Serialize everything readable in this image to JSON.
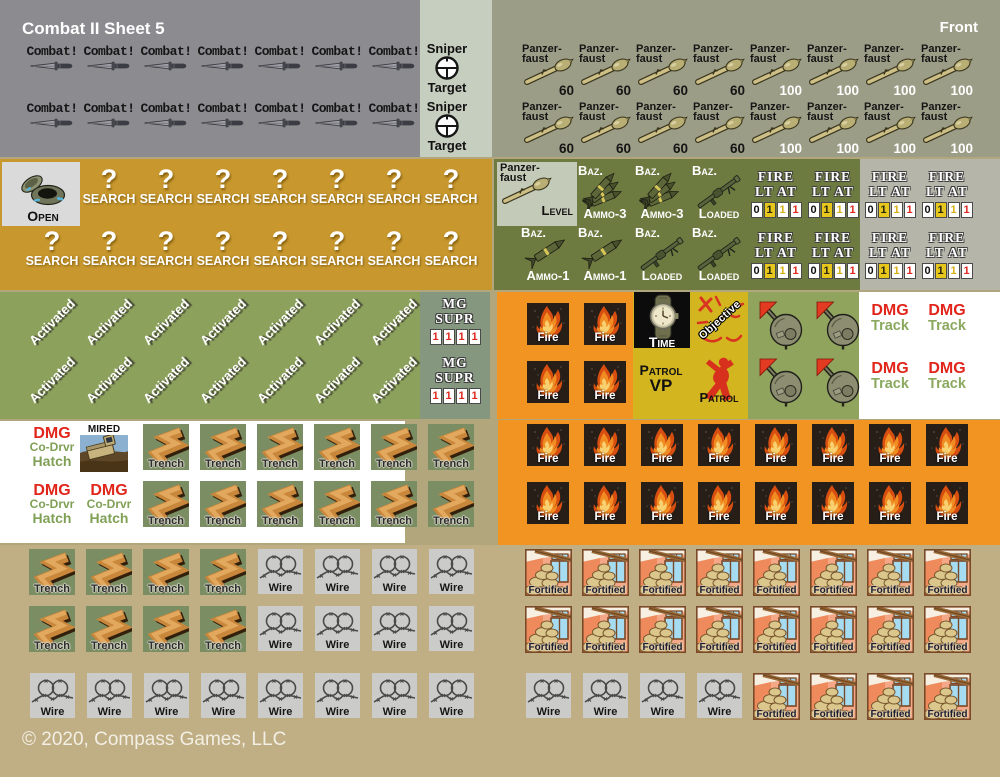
{
  "sheet": {
    "title": "Combat II Sheet 5",
    "corner_label": "Front",
    "copyright": "© 2020, Compass Games, LLC"
  },
  "colors": {
    "band_gray": "#8b8b90",
    "band_sage": "#c6cebf",
    "band_olive_gray": "#9b9d87",
    "band_gold": "#c8982f",
    "cell_light_gray": "#dadada",
    "band_olive_green": "#6d7b41",
    "band_fire_gray": "#b5b6a9",
    "band_green": "#8ca15b",
    "band_mg_green": "#85977e",
    "band_orange": "#f29422",
    "band_yellow": "#d2b51f",
    "band_white": "#ffffff",
    "tan_mid": "#b2a67c",
    "tan_light": "#c0ae84",
    "dmg_red": "#e1251b",
    "dmg_green": "#7fa055",
    "box_yellow": "#e8c71d",
    "box_red": "#e0281e"
  },
  "counters": {
    "combat": {
      "label": "Combat!",
      "icon": "dagger-icon",
      "count": 14
    },
    "sniper_target": {
      "line1": "Sniper",
      "line2": "Target",
      "icon": "scope-reticle-icon",
      "count": 2
    },
    "panzerfaust60": {
      "name1": "Panzer-",
      "name2": "faust",
      "value": "60",
      "icon": "panzerfaust-icon",
      "count": 8
    },
    "panzerfaust100": {
      "name1": "Panzer-",
      "name2": "faust",
      "value": "100",
      "icon": "panzerfaust-icon",
      "count": 8
    },
    "open": {
      "label": "Open",
      "icon": "open-hatch-icon",
      "count": 1
    },
    "search": {
      "mark": "?",
      "label": "SEARCH",
      "count": 15
    },
    "panzerfaust_level": {
      "name1": "Panzer-",
      "name2": "faust",
      "label": "Level",
      "icon": "panzerfaust-icon",
      "count": 1
    },
    "baz_ammo3": {
      "top": "Baz.",
      "bottom": "Ammo-3",
      "icon": "rockets-3-icon",
      "count": 2
    },
    "baz_ammo1": {
      "top": "Baz.",
      "bottom": "Ammo-1",
      "icon": "rocket-icon",
      "count": 2
    },
    "baz_loaded": {
      "top": "Baz.",
      "bottom": "Loaded",
      "icon": "bazooka-icon",
      "count": 3
    },
    "fire_lt_at": {
      "line1": "FIRE",
      "line2": "LT AT",
      "boxes": [
        "0",
        "1",
        "1",
        "1"
      ],
      "count": 8
    },
    "activated": {
      "label": "Activated",
      "count": 14
    },
    "mg_supr": {
      "line1": "MG",
      "line2": "SUPR",
      "boxes": [
        "1",
        "1",
        "1",
        "1"
      ],
      "count": 2
    },
    "fire": {
      "label": "Fire",
      "icon": "flame-icon",
      "count": 20
    },
    "time": {
      "label": "Time",
      "icon": "watch-icon",
      "count": 1
    },
    "objective": {
      "label": "Objective",
      "icon": "map-scribbles-icon",
      "count": 1
    },
    "patrol_vp": {
      "line1": "Patrol",
      "line2": "VP",
      "count": 1
    },
    "patrol": {
      "label": "Patrol",
      "icon": "soldier-silhouette-icon",
      "count": 1
    },
    "turret": {
      "icon": "tank-turret-icon",
      "count": 4
    },
    "dmg_track": {
      "line1": "DMG",
      "line2": "Track",
      "count": 4
    },
    "dmg_codrvr_hatch": {
      "line1": "DMG",
      "line2": "Co-Drvr",
      "line3": "Hatch",
      "count": 3
    },
    "mired": {
      "label": "MIRED",
      "icon": "stuck-truck-icon",
      "count": 1
    },
    "trench": {
      "label": "Trench",
      "icon": "trench-icon",
      "count": 20
    },
    "wire": {
      "label": "Wire",
      "icon": "barbed-wire-icon",
      "count": 20
    },
    "fortified": {
      "label": "Fortified",
      "icon": "sandbag-window-icon",
      "count": 20
    }
  }
}
